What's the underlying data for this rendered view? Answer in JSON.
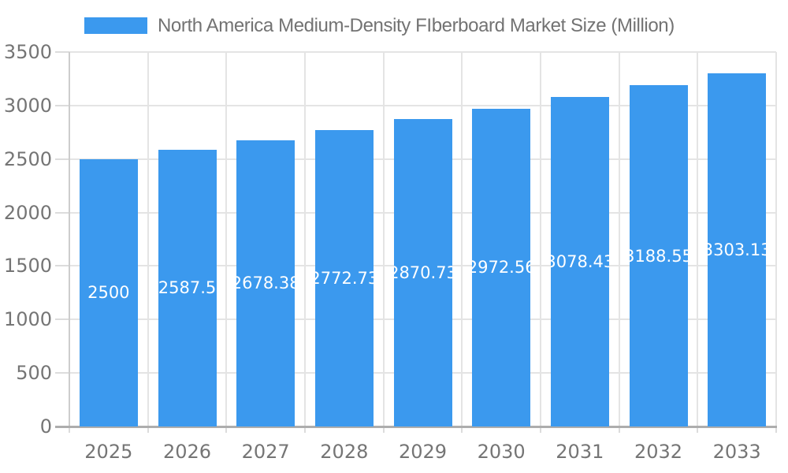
{
  "legend": {
    "label": "North America Medium-Density FIberboard Market Size (Million)"
  },
  "chart_data": {
    "type": "bar",
    "title": "North America Medium-Density FIberboard Market Size (Million)",
    "series_name": "North America Medium-Density FIberboard Market Size (Million)",
    "categories": [
      "2025",
      "2026",
      "2027",
      "2028",
      "2029",
      "2030",
      "2031",
      "2032",
      "2033"
    ],
    "values": [
      2500,
      2587.5,
      2678.38,
      2772.73,
      2870.73,
      2972.56,
      3078.43,
      3188.55,
      3303.13
    ],
    "value_labels": [
      "2500",
      "2587.5",
      "2678.38",
      "2772.73",
      "2870.73",
      "2972.56",
      "3078.43",
      "3188.55",
      "3303.13"
    ],
    "xlabel": "",
    "ylabel": "",
    "ylim": [
      0,
      3500
    ],
    "ytick_step": 500,
    "yticks": [
      "0",
      "500",
      "1000",
      "1500",
      "2000",
      "2500",
      "3000",
      "3500"
    ],
    "grid": true,
    "legend_position": "top",
    "colors": {
      "bar": "#3B99EE",
      "value_label": "#FFFFFF",
      "axis_text": "#757575",
      "title_text": "#737373",
      "grid": "#E4E4E4",
      "tick": "#DCDCDC",
      "y_axis_line": "#CDCDCD",
      "x_axis_line": "#ADADAD"
    }
  }
}
